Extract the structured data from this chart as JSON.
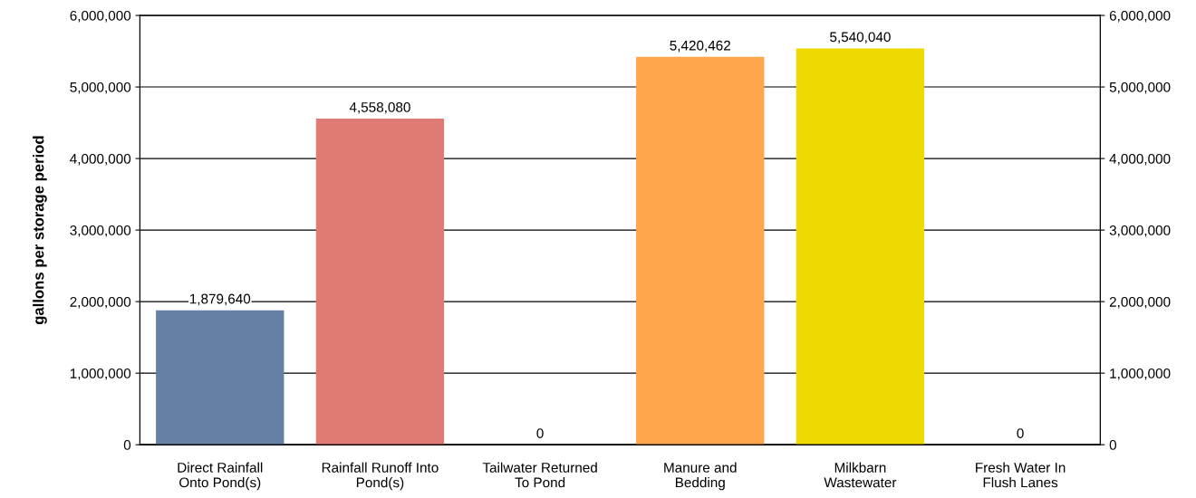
{
  "chart_data": {
    "type": "bar",
    "ylabel": "gallons per storage period",
    "categories": [
      "Direct Rainfall\nOnto Pond(s)",
      "Rainfall Runoff Into\nPond(s)",
      "Tailwater Returned\nTo Pond",
      "Manure and\nBedding",
      "Milkbarn\nWastewater",
      "Fresh Water In\nFlush Lanes"
    ],
    "values": [
      1879640,
      4558080,
      0,
      5420462,
      5540040,
      0
    ],
    "value_labels": [
      "1,879,640",
      "4,558,080",
      "0",
      "5,420,462",
      "5,540,040",
      "0"
    ],
    "colors": [
      "#667fa4",
      "#e07a74",
      "#667fa4",
      "#ffa64d",
      "#eed900",
      "#667fa4"
    ],
    "ylim": [
      0,
      6000000
    ],
    "yticks": [
      {
        "value": 0,
        "label": "0"
      },
      {
        "value": 1000000,
        "label": "1,000,000"
      },
      {
        "value": 2000000,
        "label": "2,000,000"
      },
      {
        "value": 3000000,
        "label": "3,000,000"
      },
      {
        "value": 4000000,
        "label": "4,000,000"
      },
      {
        "value": 5000000,
        "label": "5,000,000"
      },
      {
        "value": 6000000,
        "label": "6,000,000"
      }
    ],
    "y2lim": [
      0,
      6000000
    ],
    "y2ticks": [
      {
        "value": 0,
        "label": "0"
      },
      {
        "value": 1000000,
        "label": "1,000,000"
      },
      {
        "value": 2000000,
        "label": "2,000,000"
      },
      {
        "value": 3000000,
        "label": "3,000,000"
      },
      {
        "value": 4000000,
        "label": "4,000,000"
      },
      {
        "value": 5000000,
        "label": "5,000,000"
      },
      {
        "value": 6000000,
        "label": "6,000,000"
      }
    ],
    "grid": "y"
  }
}
